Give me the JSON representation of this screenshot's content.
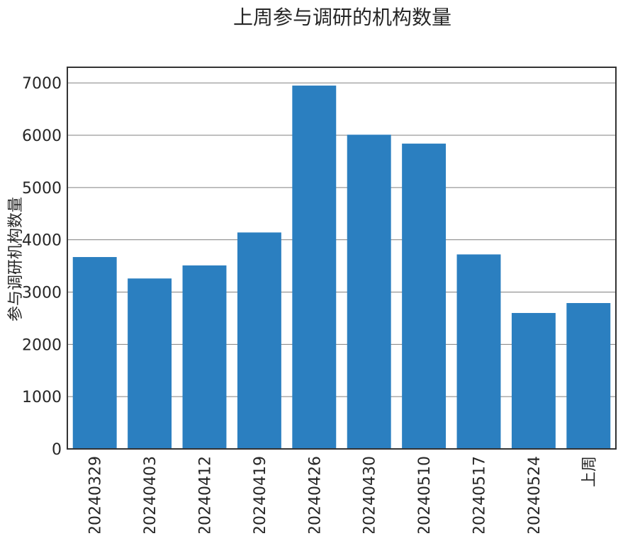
{
  "chart_data": {
    "type": "bar",
    "title": "上周参与调研的机构数量",
    "xlabel": "",
    "ylabel": "参与调研机构数量",
    "categories": [
      "20240329",
      "20240403",
      "20240412",
      "20240419",
      "20240426",
      "20240430",
      "20240510",
      "20240517",
      "20240524",
      "上周"
    ],
    "values": [
      3670,
      3260,
      3510,
      4140,
      6950,
      6010,
      5840,
      3720,
      2600,
      2790
    ],
    "ylim": [
      0,
      7300
    ],
    "yticks": [
      0,
      1000,
      2000,
      3000,
      4000,
      5000,
      6000,
      7000
    ],
    "grid": "horizontal",
    "bar_color": "#2b7fc0",
    "grid_color": "#808080",
    "frame_color": "#333333"
  }
}
